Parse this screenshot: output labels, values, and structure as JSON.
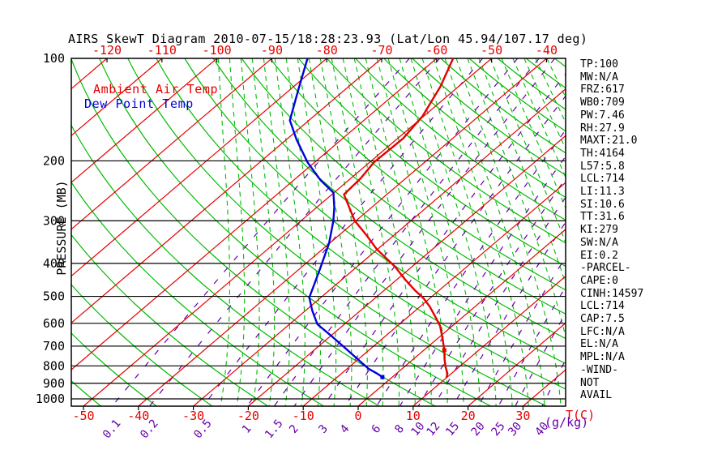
{
  "title": "AIRS SkewT Diagram 2010-07-15/18:28:23.93 (Lat/Lon 45.94/107.17 deg)",
  "legend": {
    "ambient_label": "Ambient Air Temp",
    "dew_label": "Dew Point Temp"
  },
  "axes": {
    "pressure_axis_label": "PRESSURE (MB)",
    "pressure_ticks": [
      100,
      200,
      300,
      400,
      500,
      600,
      700,
      800,
      900,
      1000
    ],
    "top_temp_ticks": [
      -120,
      -110,
      -100,
      -90,
      -80,
      -70,
      -60,
      -50,
      -40
    ],
    "bottom_temp_ticks": [
      -50,
      -40,
      -30,
      -20,
      -10,
      0,
      10,
      20,
      30
    ],
    "temp_unit_label": "T(C)",
    "mixing_ratio_ticks": [
      0.1,
      0.2,
      0.5,
      1,
      1.5,
      2,
      3,
      4,
      6,
      8,
      10,
      12,
      15,
      20,
      25,
      30,
      40
    ],
    "mixing_unit_label": "(g/kg)"
  },
  "stats_panel": {
    "lines": [
      "TP:100",
      "MW:N/A",
      "FRZ:617",
      "WB0:709",
      "PW:7.46",
      "RH:27.9",
      "MAXT:21.0",
      "TH:4164",
      "L57:5.8",
      "LCL:714",
      "LI:11.3",
      "SI:10.6",
      "TT:31.6",
      "KI:279",
      "SW:N/A",
      "EI:0.2",
      "-PARCEL-",
      "CAPE:0",
      "CINH:14597",
      "LCL:714",
      "CAP:7.5",
      "LFC:N/A",
      "EL:N/A",
      "MPL:N/A",
      "-WIND-",
      "NOT",
      "AVAIL"
    ]
  },
  "colors": {
    "ambient_curve": "#e60000",
    "dew_curve": "#0000dd",
    "isotherm_grid": "#e60000",
    "dry_adiabat_grid": "#00bb00",
    "moist_adiabat_grid": "#00bb00",
    "mixing_ratio_grid": "#6600aa",
    "axis": "#000000"
  },
  "chart_data": {
    "type": "line",
    "subtype": "skew-t-log-p",
    "title": "AIRS SkewT Diagram 2010-07-15/18:28:23.93 (Lat/Lon 45.94/107.17 deg)",
    "xlabel": "T(C)",
    "ylabel": "PRESSURE (MB)",
    "y_scale": "log",
    "pressure_range_mb": [
      100,
      1050
    ],
    "bottom_temp_ticks_c": [
      -50,
      -40,
      -30,
      -20,
      -10,
      0,
      10,
      20,
      30
    ],
    "top_temp_ticks_c": [
      -120,
      -110,
      -100,
      -90,
      -80,
      -70,
      -60,
      -50,
      -40
    ],
    "mixing_ratio_lines_g_kg": [
      0.1,
      0.2,
      0.5,
      1,
      1.5,
      2,
      3,
      4,
      6,
      8,
      10,
      12,
      15,
      20,
      25,
      30,
      40
    ],
    "grid": "isotherms (red, every 10C, skewed), dry adiabats (green solid), moist adiabats (green dashed), mixing ratio (purple dashed)",
    "legend_position": "top-left inside plot",
    "series": [
      {
        "name": "Ambient Air Temp",
        "color": "#e60000",
        "points_pressure_temp": [
          [
            100,
            -57.0
          ],
          [
            121,
            -53.3
          ],
          [
            148,
            -50.2
          ],
          [
            172,
            -49.0
          ],
          [
            202,
            -49.2
          ],
          [
            225,
            -48.2
          ],
          [
            251,
            -47.8
          ],
          [
            300,
            -40.2
          ],
          [
            330,
            -35.1
          ],
          [
            363,
            -30.2
          ],
          [
            409,
            -23.1
          ],
          [
            447,
            -18.4
          ],
          [
            480,
            -14.4
          ],
          [
            507,
            -11.1
          ],
          [
            535,
            -8.3
          ],
          [
            572,
            -5.2
          ],
          [
            611,
            -2.2
          ],
          [
            663,
            0.8
          ],
          [
            719,
            3.7
          ],
          [
            765,
            5.7
          ],
          [
            803,
            7.4
          ],
          [
            843,
            9.3
          ],
          [
            867,
            10.0
          ]
        ],
        "marker_points_pressure_temp": [
          [
            719,
            3.7
          ]
        ]
      },
      {
        "name": "Dew Point Temp",
        "color": "#0000dd",
        "points_pressure_temp": [
          [
            100,
            -83.5
          ],
          [
            123,
            -78.6
          ],
          [
            152,
            -73.5
          ],
          [
            173,
            -68.2
          ],
          [
            202,
            -61.3
          ],
          [
            228,
            -55.1
          ],
          [
            248,
            -50.1
          ],
          [
            274,
            -46.8
          ],
          [
            300,
            -44.1
          ],
          [
            349,
            -40.1
          ],
          [
            409,
            -36.6
          ],
          [
            459,
            -34.1
          ],
          [
            504,
            -32.1
          ],
          [
            550,
            -28.8
          ],
          [
            604,
            -24.9
          ],
          [
            648,
            -20.4
          ],
          [
            700,
            -15.6
          ],
          [
            760,
            -10.5
          ],
          [
            817,
            -6.0
          ],
          [
            843,
            -3.5
          ],
          [
            863,
            -1.8
          ]
        ],
        "marker_points_pressure_temp": [
          [
            863,
            -1.8
          ]
        ]
      }
    ]
  }
}
